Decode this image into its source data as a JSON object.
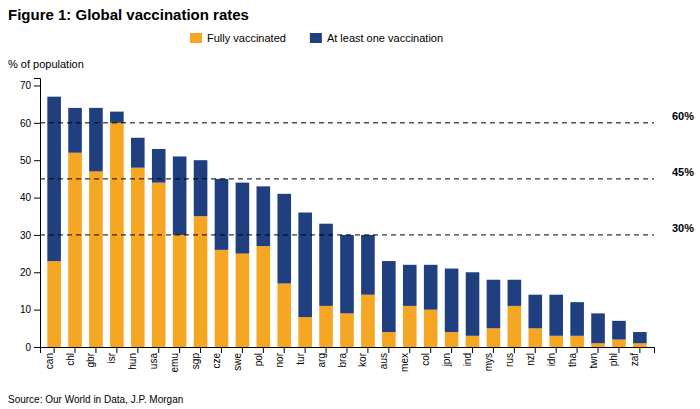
{
  "chart_data": {
    "type": "bar",
    "stacked": true,
    "title": "Figure 1: Global vaccination rates",
    "ylabel": "% of population",
    "source": "Source: Our World in Data, J.P. Morgan",
    "categories": [
      "can",
      "chl",
      "gbr",
      "isr",
      "hun",
      "usa",
      "emu",
      "sgp",
      "cze",
      "swe",
      "pol",
      "nor",
      "tur",
      "arg",
      "bra",
      "kor",
      "aus",
      "mex",
      "col",
      "jpn",
      "ind",
      "mys",
      "rus",
      "nzl",
      "idn",
      "tha",
      "twn",
      "phl",
      "zaf"
    ],
    "series": [
      {
        "name": "Fully vaccinated",
        "color": "#F5A623",
        "values": [
          23,
          52,
          47,
          60,
          48,
          44,
          30,
          35,
          26,
          25,
          27,
          17,
          8,
          11,
          9,
          14,
          4,
          11,
          10,
          4,
          3,
          5,
          11,
          5,
          3,
          3,
          1,
          2,
          1
        ]
      },
      {
        "name": "At least one vaccination",
        "color": "#1F3F7F",
        "values": [
          44,
          12,
          17,
          3,
          8,
          9,
          21,
          15,
          19,
          19,
          16,
          24,
          28,
          22,
          21,
          16,
          19,
          11,
          12,
          17,
          17,
          13,
          7,
          9,
          11,
          9,
          8,
          5,
          3
        ]
      }
    ],
    "reference_lines": [
      {
        "value": 60,
        "label": "60%"
      },
      {
        "value": 45,
        "label": "45%"
      },
      {
        "value": 30,
        "label": "30%"
      }
    ],
    "ylim": [
      0,
      72
    ],
    "yticks": [
      0,
      10,
      20,
      30,
      40,
      50,
      60,
      70
    ],
    "grid": false,
    "legend": "top"
  }
}
